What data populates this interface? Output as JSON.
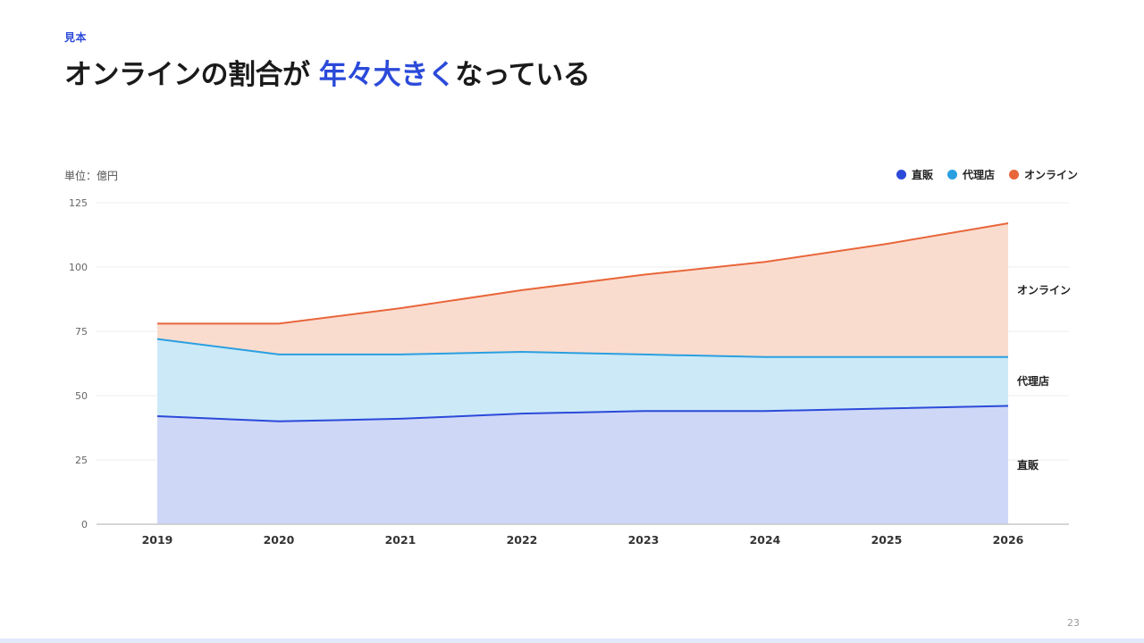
{
  "slide": {
    "eyebrow": "見本",
    "headline_pre": "オンラインの割合が ",
    "headline_accent": "年々大きく",
    "headline_post": "なっている",
    "unit": "単位：億円",
    "page_number": "23"
  },
  "colors": {
    "accent": "#2b4ad9",
    "direct": "#2b4ad9",
    "agency": "#2a9fe0",
    "online": "#e8663a",
    "direct_fill": "#cfd7f7",
    "agency_fill": "#cce9f7",
    "online_fill": "#fadccf"
  },
  "chart_data": {
    "type": "area",
    "stacked": true,
    "title": "",
    "xlabel": "",
    "ylabel": "",
    "x": [
      "2019",
      "2020",
      "2021",
      "2022",
      "2023",
      "2024",
      "2025",
      "2026"
    ],
    "ylim": [
      0,
      125
    ],
    "yticks": [
      0,
      25,
      50,
      75,
      100,
      125
    ],
    "grid": true,
    "legend_position": "top-right",
    "series": [
      {
        "name": "直販",
        "values": [
          42,
          40,
          41,
          43,
          44,
          44,
          45,
          46
        ]
      },
      {
        "name": "代理店",
        "values": [
          30,
          26,
          25,
          24,
          22,
          21,
          20,
          19
        ]
      },
      {
        "name": "オンライン",
        "values": [
          6,
          12,
          18,
          24,
          31,
          37,
          44,
          52
        ]
      }
    ]
  }
}
